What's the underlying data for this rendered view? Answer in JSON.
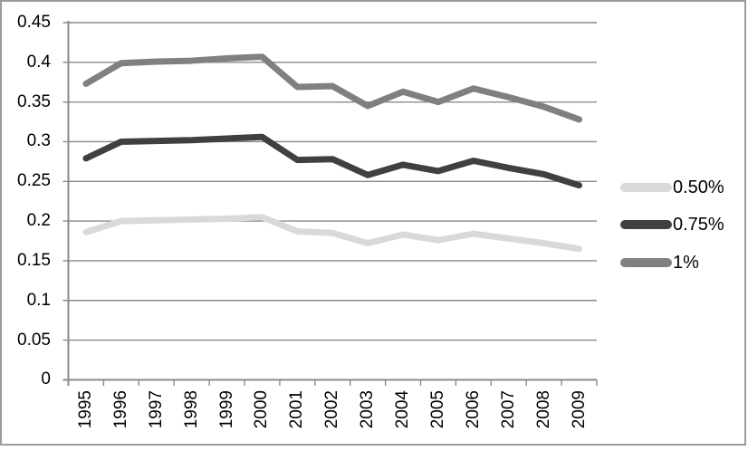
{
  "chart_data": {
    "type": "line",
    "title": "",
    "xlabel": "",
    "ylabel": "",
    "categories": [
      "1995",
      "1996",
      "1997",
      "1998",
      "1999",
      "2000",
      "2001",
      "2002",
      "2003",
      "2004",
      "2005",
      "2006",
      "2007",
      "2008",
      "2009"
    ],
    "series": [
      {
        "name": "0.50%",
        "color": "#d9d9d9",
        "values": [
          0.186,
          0.2,
          0.201,
          0.202,
          0.203,
          0.205,
          0.187,
          0.185,
          0.172,
          0.183,
          0.176,
          0.184,
          0.178,
          0.172,
          0.165
        ]
      },
      {
        "name": "0.75%",
        "color": "#404040",
        "values": [
          0.279,
          0.3,
          0.301,
          0.302,
          0.304,
          0.306,
          0.277,
          0.278,
          0.258,
          0.271,
          0.263,
          0.276,
          0.267,
          0.259,
          0.245
        ]
      },
      {
        "name": "1%",
        "color": "#808080",
        "values": [
          0.373,
          0.399,
          0.401,
          0.402,
          0.405,
          0.407,
          0.369,
          0.37,
          0.345,
          0.363,
          0.35,
          0.367,
          0.356,
          0.344,
          0.328
        ]
      }
    ],
    "ylim": [
      0,
      0.45
    ],
    "y_tick_step": 0.05,
    "y_tick_labels": [
      "0",
      "0.05",
      "0.1",
      "0.15",
      "0.2",
      "0.25",
      "0.3",
      "0.35",
      "0.4",
      "0.45"
    ],
    "grid": true,
    "legend_position": "right"
  },
  "colors": {
    "gridline": "#8a8a8a",
    "axis": "#8a8a8a",
    "frame_border": "#9b9b9b",
    "text": "#000000",
    "background": "#ffffff"
  }
}
